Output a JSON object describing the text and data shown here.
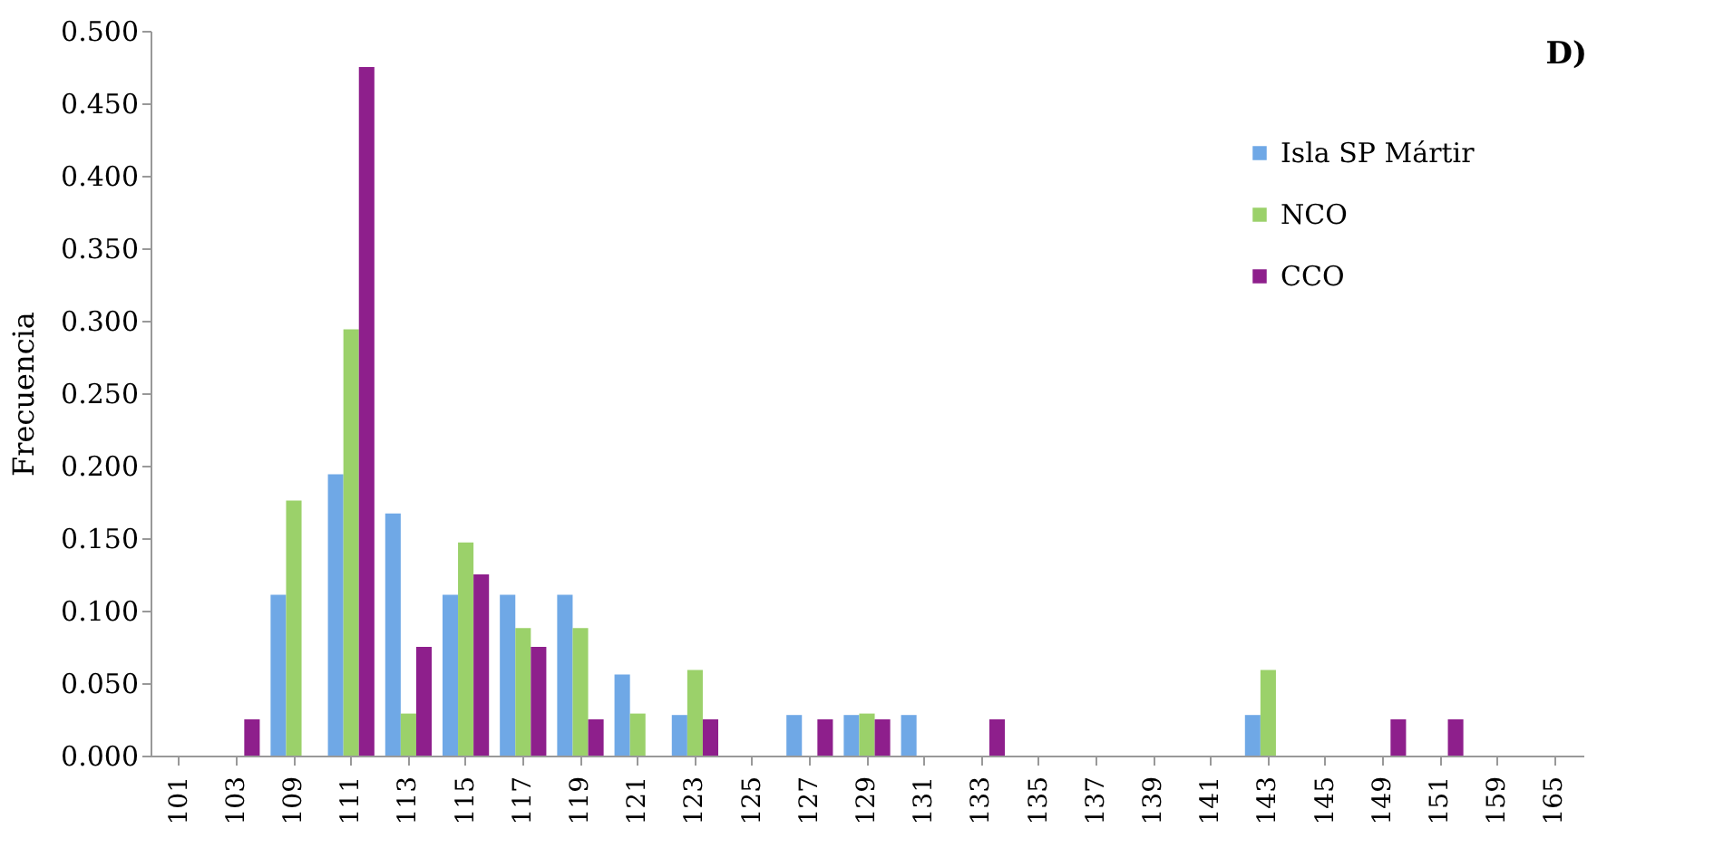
{
  "chart_data": {
    "type": "bar",
    "ylabel": "Frecuencia",
    "annotations": [
      "D)"
    ],
    "categories": [
      "101",
      "103",
      "109",
      "111",
      "113",
      "115",
      "117",
      "119",
      "121",
      "123",
      "125",
      "127",
      "129",
      "131",
      "133",
      "135",
      "137",
      "139",
      "141",
      "143",
      "145",
      "149",
      "151",
      "159",
      "165"
    ],
    "series": [
      {
        "name": "Isla SP Mártir",
        "color": "#6fa8e6",
        "values": [
          null,
          null,
          0.111,
          0.194,
          0.167,
          0.111,
          0.111,
          0.111,
          0.056,
          0.028,
          null,
          0.028,
          0.028,
          0.028,
          null,
          null,
          null,
          null,
          null,
          0.028,
          null,
          null,
          null,
          null,
          null
        ]
      },
      {
        "name": "NCO",
        "color": "#9bd16a",
        "values": [
          null,
          null,
          0.176,
          0.294,
          0.029,
          0.147,
          0.088,
          0.088,
          0.029,
          0.059,
          null,
          null,
          0.029,
          null,
          null,
          null,
          null,
          null,
          null,
          0.059,
          null,
          null,
          null,
          null,
          null
        ]
      },
      {
        "name": "CCO",
        "color": "#8e1f8c",
        "values": [
          null,
          0.025,
          null,
          0.475,
          0.075,
          0.125,
          0.075,
          0.025,
          null,
          0.025,
          null,
          0.025,
          0.025,
          null,
          0.025,
          null,
          null,
          null,
          null,
          null,
          null,
          0.025,
          0.025,
          null,
          null
        ]
      }
    ],
    "ylim": [
      0,
      0.5
    ],
    "yticks": [
      {
        "value": 0,
        "label": "0.000"
      },
      {
        "value": 0.05,
        "label": "0.050"
      },
      {
        "value": 0.1,
        "label": "0.100"
      },
      {
        "value": 0.15,
        "label": "0.150"
      },
      {
        "value": 0.2,
        "label": "0.200"
      },
      {
        "value": 0.25,
        "label": "0.250"
      },
      {
        "value": 0.3,
        "label": "0.300"
      },
      {
        "value": 0.35,
        "label": "0.350"
      },
      {
        "value": 0.4,
        "label": "0.400"
      },
      {
        "value": 0.45,
        "label": "0.450"
      },
      {
        "value": 0.5,
        "label": "0.500"
      }
    ],
    "grid": false,
    "legend": "top right"
  }
}
